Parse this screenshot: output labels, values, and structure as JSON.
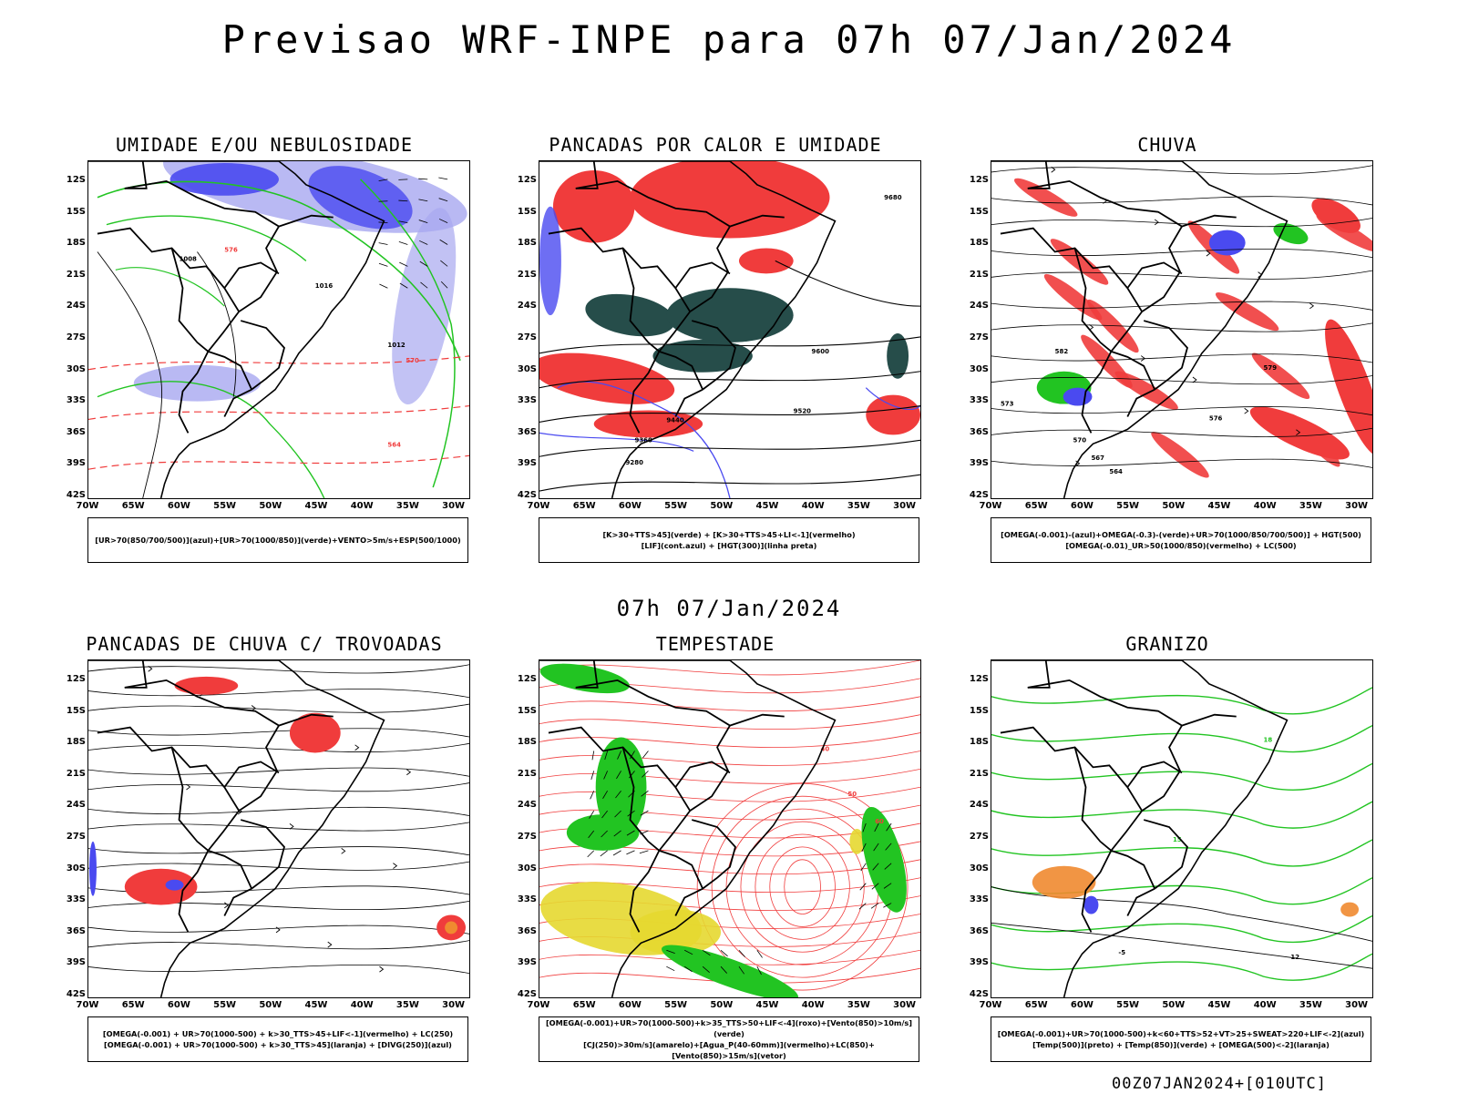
{
  "header": {
    "title": "Previsao WRF-INPE  para 07h 07/Jan/2024",
    "subtitle": "07h 07/Jan/2024",
    "footer": "00Z07JAN2024+[010UTC]"
  },
  "axes": {
    "lat_labels": [
      "12S",
      "15S",
      "18S",
      "21S",
      "24S",
      "27S",
      "30S",
      "33S",
      "36S",
      "39S",
      "42S"
    ],
    "lon_labels": [
      "70W",
      "65W",
      "60W",
      "55W",
      "50W",
      "45W",
      "40W",
      "35W",
      "30W"
    ]
  },
  "colors": {
    "blue": "#4a4af0",
    "light_blue": "#a8a8f0",
    "green": "#22c422",
    "dark_green": "#1e7a2e",
    "red": "#f03c3c",
    "dark_teal": "#264d4a",
    "yellow": "#e6d830",
    "orange": "#f08a30",
    "black": "#000000"
  },
  "panels": [
    {
      "title": "UMIDADE E/OU NEBULOSIDADE",
      "legend": [
        "[UR>70(850/700/500)](azul)+[UR>70(1000/850)](verde)+VENTO>5m/s+ESP(500/1000)"
      ],
      "labels": [
        "1008",
        "1012",
        "1016",
        "576",
        "570",
        "564"
      ]
    },
    {
      "title": "PANCADAS POR CALOR E UMIDADE",
      "legend": [
        "[K>30+TTS>45](verde) + [K>30+TTS>45+LI<-1](vermelho)",
        "[LIF](cont.azul) + [HGT(300)](linha preta)"
      ],
      "labels": [
        "9680",
        "9600",
        "9520",
        "9440",
        "9360",
        "9280"
      ]
    },
    {
      "title": "CHUVA",
      "legend": [
        "[OMEGA(-0.001)-(azul)+OMEGA(-0.3)-(verde)+UR>70(1000/850/700/500)] + HGT(500)",
        "[OMEGA(-0.01)_UR>50(1000/850)(vermelho) + LC(500)"
      ],
      "labels": [
        "582",
        "579",
        "576",
        "573",
        "570",
        "567",
        "564"
      ]
    },
    {
      "title": "PANCADAS DE CHUVA C/ TROVOADAS",
      "legend": [
        "[OMEGA(-0.001) + UR>70(1000-500) + k>30_TTS>45+LIF<-1](vermelho) + LC(250)",
        "[OMEGA(-0.001) + UR>70(1000-500) + k>30_TTS>45](laranja) + [DIVG(250)](azul)"
      ],
      "labels": []
    },
    {
      "title": "TEMPESTADE",
      "legend": [
        "[OMEGA(-0.001)+UR>70(1000-500)+k>35_TTS>50+LIF<-4](roxo)+[Vento(850)>10m/s](verde)",
        "[CJ(250)>30m/s](amarelo)+[Agua_P(40-60mm)](vermelho)+LC(850)+[Vento(850)>15m/s](vetor)"
      ],
      "labels": [
        "40",
        "50",
        "60"
      ]
    },
    {
      "title": "GRANIZO",
      "legend": [
        "[OMEGA(-0.001)+UR>70(1000-500)+k<60+TTS>52+VT>25+SWEAT>220+LIF<-2](azul)",
        "[Temp(500)](preto) + [Temp(850)](verde) + [OMEGA(500)<-2](laranja)"
      ],
      "labels": [
        "18",
        "15",
        "12",
        "-5"
      ]
    }
  ]
}
